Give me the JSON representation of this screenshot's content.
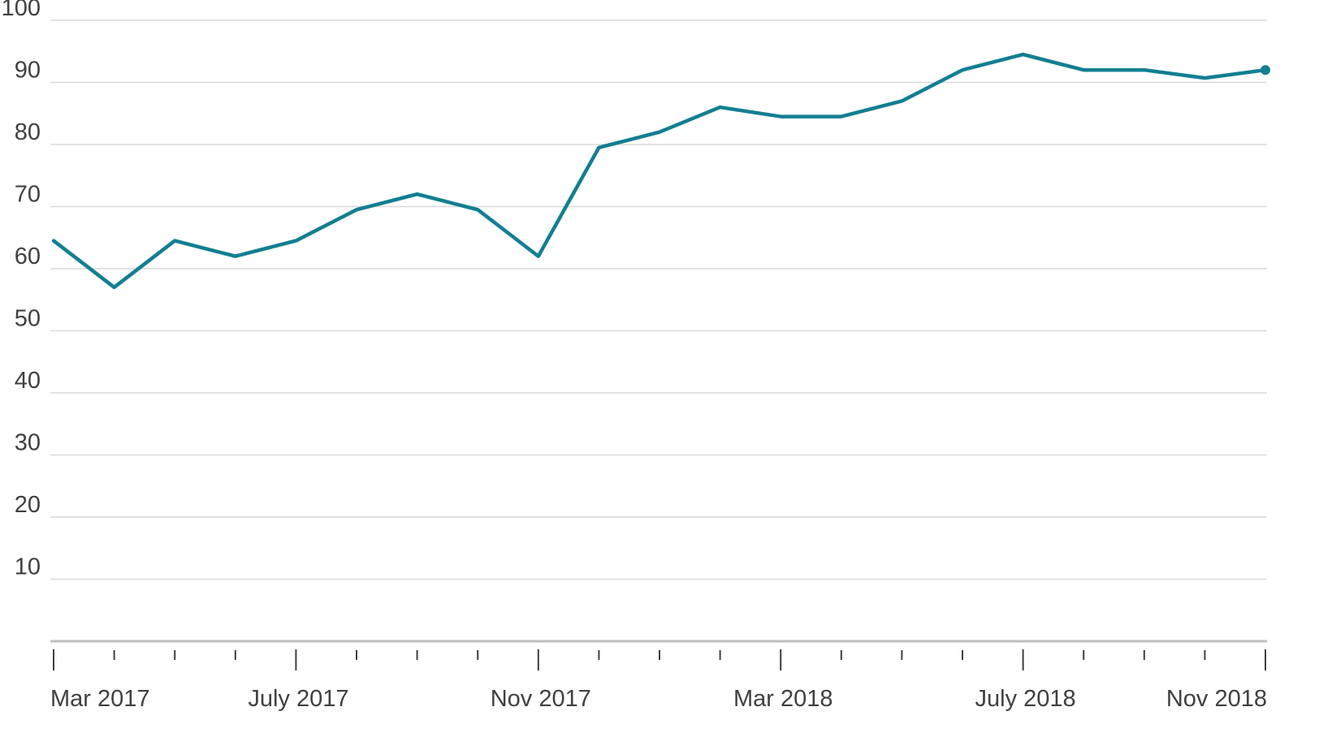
{
  "chart_data": {
    "type": "line",
    "title": "",
    "xlabel": "",
    "ylabel": "",
    "ylim": [
      0,
      100
    ],
    "y_ticks": [
      10,
      20,
      30,
      40,
      50,
      60,
      70,
      80,
      90,
      100
    ],
    "x_tick_labels": [
      {
        "month": "2017-03",
        "label": "Mar 2017"
      },
      {
        "month": "2017-07",
        "label": "July 2017"
      },
      {
        "month": "2017-11",
        "label": "Nov 2017"
      },
      {
        "month": "2018-03",
        "label": "Mar 2018"
      },
      {
        "month": "2018-07",
        "label": "July 2018"
      },
      {
        "month": "2018-11",
        "label": "Nov 2018"
      }
    ],
    "x": [
      "2017-03",
      "2017-04",
      "2017-05",
      "2017-06",
      "2017-07",
      "2017-08",
      "2017-09",
      "2017-10",
      "2017-11",
      "2017-12",
      "2018-01",
      "2018-02",
      "2018-03",
      "2018-04",
      "2018-05",
      "2018-06",
      "2018-07",
      "2018-08",
      "2018-09",
      "2018-10",
      "2018-11"
    ],
    "series": [
      {
        "values": [
          64.5,
          57,
          64.5,
          62,
          64.5,
          69.5,
          72,
          69.5,
          62,
          79.5,
          82,
          86,
          84.5,
          84.5,
          87,
          92,
          94.5,
          92,
          92,
          90.7,
          92
        ],
        "color": "#127f91"
      }
    ],
    "grid": true,
    "gridline_color": "#d9d9d9",
    "axis_color": "#bfbfbf",
    "tick_color": "#404040",
    "end_marker": true
  }
}
